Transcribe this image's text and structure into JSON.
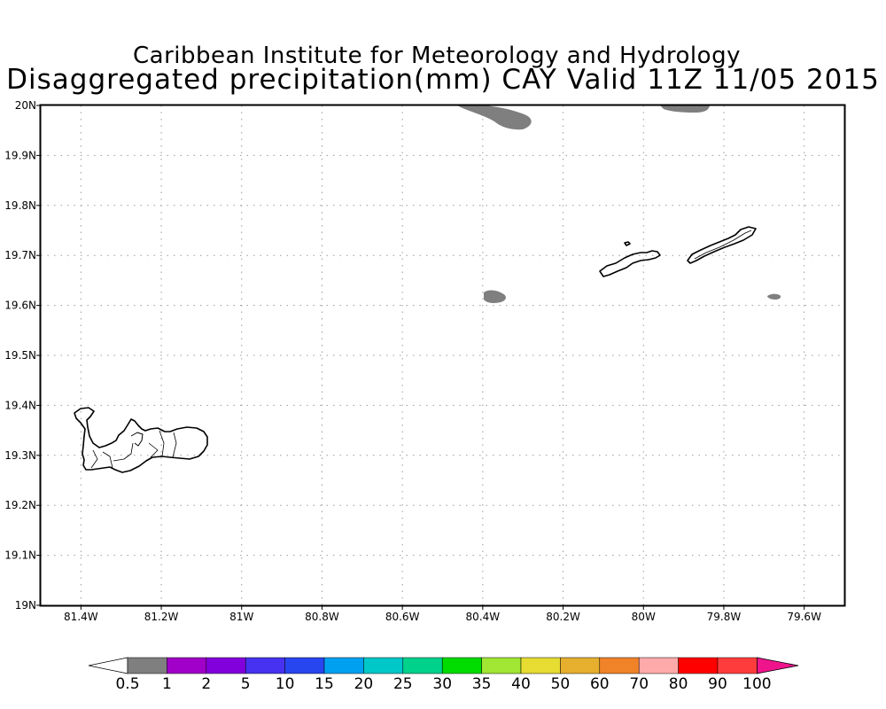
{
  "header": {
    "line1": "Caribbean Institute for Meteorology and Hydrology",
    "line2": "Disaggregated precipitation(mm) CAY Valid 11Z 11/05 2015"
  },
  "map": {
    "lon_range": [
      -81.5,
      -79.5
    ],
    "lat_range": [
      19.0,
      20.0
    ],
    "grid": "dotted",
    "lon_ticks": [
      {
        "lon": -81.4,
        "label": "81.4W"
      },
      {
        "lon": -81.2,
        "label": "81.2W"
      },
      {
        "lon": -81.0,
        "label": "81W"
      },
      {
        "lon": -80.8,
        "label": "80.8W"
      },
      {
        "lon": -80.6,
        "label": "80.6W"
      },
      {
        "lon": -80.4,
        "label": "80.4W"
      },
      {
        "lon": -80.2,
        "label": "80.2W"
      },
      {
        "lon": -80.0,
        "label": "80W"
      },
      {
        "lon": -79.8,
        "label": "79.8W"
      },
      {
        "lon": -79.6,
        "label": "79.6W"
      }
    ],
    "lat_ticks": [
      {
        "lat": 20.0,
        "label": "20N"
      },
      {
        "lat": 19.9,
        "label": "19.9N"
      },
      {
        "lat": 19.8,
        "label": "19.8N"
      },
      {
        "lat": 19.7,
        "label": "19.7N"
      },
      {
        "lat": 19.6,
        "label": "19.6N"
      },
      {
        "lat": 19.5,
        "label": "19.5N"
      },
      {
        "lat": 19.4,
        "label": "19.4N"
      },
      {
        "lat": 19.3,
        "label": "19.3N"
      },
      {
        "lat": 19.2,
        "label": "19.2N"
      },
      {
        "lat": 19.1,
        "label": "19.1N"
      },
      {
        "lat": 19.0,
        "label": "19N"
      }
    ],
    "precip_category": "0.5-1 mm",
    "precip_color": "#7f7f7f",
    "land_outline_color": "#000000"
  },
  "colorbar": {
    "labels": [
      "0.5",
      "1",
      "2",
      "5",
      "10",
      "15",
      "20",
      "25",
      "30",
      "35",
      "40",
      "50",
      "60",
      "70",
      "80",
      "90",
      "100"
    ],
    "low_color": "#ffffff",
    "colors": [
      "#7f7f7f",
      "#a000c8",
      "#8200dc",
      "#4632f0",
      "#2846f0",
      "#00a0f0",
      "#00c8c8",
      "#00d28c",
      "#00dc00",
      "#a0e632",
      "#e6dc32",
      "#e6af2d",
      "#f08228",
      "#ffaaaa",
      "#ff0000",
      "#ff3c3c"
    ],
    "high_color": "#f0148c"
  }
}
